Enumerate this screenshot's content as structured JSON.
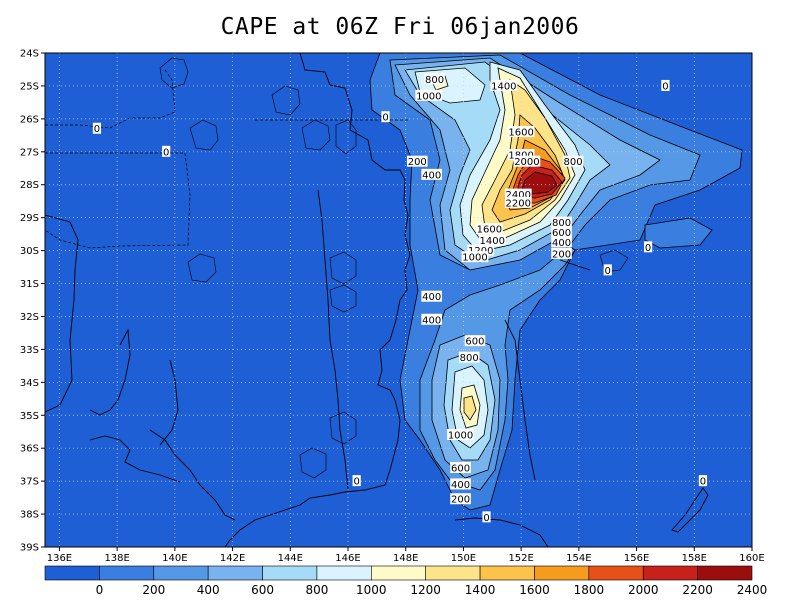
{
  "title": "CAPE at 06Z Fri 06jan2006",
  "map": {
    "lon_range": [
      135.5,
      160
    ],
    "lat_range": [
      -39,
      -24
    ],
    "lon_ticks": [
      "136E",
      "138E",
      "140E",
      "142E",
      "144E",
      "146E",
      "148E",
      "150E",
      "152E",
      "154E",
      "156E",
      "158E",
      "160E"
    ],
    "lat_ticks": [
      "24S",
      "25S",
      "26S",
      "27S",
      "28S",
      "29S",
      "30S",
      "31S",
      "32S",
      "33S",
      "34S",
      "35S",
      "36S",
      "37S",
      "38S",
      "39S"
    ],
    "grid": "dotted",
    "coastline_color": "#000000"
  },
  "colorbar": {
    "labels": [
      "0",
      "200",
      "400",
      "600",
      "800",
      "1000",
      "1200",
      "1400",
      "1600",
      "1800",
      "2000",
      "2200",
      "2400"
    ],
    "colors": [
      "#1f5fd6",
      "#3a7ee0",
      "#5598e6",
      "#78b2ef",
      "#a6dbf7",
      "#d9f4ff",
      "#fffbc8",
      "#fde38a",
      "#fbc24c",
      "#f59b1e",
      "#e8501a",
      "#c8201a",
      "#9c0e0e"
    ]
  },
  "contour_labels": [
    {
      "text": "800",
      "lon": 149.0,
      "lat": -24.8
    },
    {
      "text": "1000",
      "lon": 148.8,
      "lat": -25.3
    },
    {
      "text": "1400",
      "lon": 151.4,
      "lat": -25.0
    },
    {
      "text": "1600",
      "lon": 152.0,
      "lat": -26.4
    },
    {
      "text": "1800",
      "lon": 152.0,
      "lat": -27.1
    },
    {
      "text": "2000",
      "lon": 152.2,
      "lat": -27.3
    },
    {
      "text": "2400",
      "lon": 151.9,
      "lat": -28.3
    },
    {
      "text": "2200",
      "lon": 151.9,
      "lat": -28.55
    },
    {
      "text": "200",
      "lon": 148.4,
      "lat": -27.3
    },
    {
      "text": "400",
      "lon": 148.9,
      "lat": -27.7
    },
    {
      "text": "800",
      "lon": 153.8,
      "lat": -27.3
    },
    {
      "text": "800",
      "lon": 153.4,
      "lat": -29.15
    },
    {
      "text": "600",
      "lon": 153.4,
      "lat": -29.45
    },
    {
      "text": "400",
      "lon": 153.4,
      "lat": -29.75
    },
    {
      "text": "200",
      "lon": 153.4,
      "lat": -30.1
    },
    {
      "text": "1600",
      "lon": 150.9,
      "lat": -29.35
    },
    {
      "text": "1400",
      "lon": 151.0,
      "lat": -29.7
    },
    {
      "text": "1200",
      "lon": 150.6,
      "lat": -30.0
    },
    {
      "text": "1000",
      "lon": 150.4,
      "lat": -30.2
    },
    {
      "text": "400",
      "lon": 148.9,
      "lat": -31.4
    },
    {
      "text": "400",
      "lon": 148.9,
      "lat": -32.1
    },
    {
      "text": "600",
      "lon": 150.4,
      "lat": -32.75
    },
    {
      "text": "800",
      "lon": 150.2,
      "lat": -33.25
    },
    {
      "text": "1000",
      "lon": 149.9,
      "lat": -35.6
    },
    {
      "text": "600",
      "lon": 149.9,
      "lat": -36.6
    },
    {
      "text": "400",
      "lon": 149.9,
      "lat": -37.1
    },
    {
      "text": "200",
      "lon": 149.9,
      "lat": -37.55
    },
    {
      "text": "0",
      "lon": 150.8,
      "lat": -38.1
    },
    {
      "text": "0",
      "lon": 146.3,
      "lat": -37.0
    },
    {
      "text": "0",
      "lon": 137.3,
      "lat": -26.3
    },
    {
      "text": "0",
      "lon": 139.7,
      "lat": -27.0
    },
    {
      "text": "0",
      "lon": 147.3,
      "lat": -25.95
    },
    {
      "text": "0",
      "lon": 157.0,
      "lat": -25.0
    },
    {
      "text": "0",
      "lon": 156.4,
      "lat": -29.9
    },
    {
      "text": "0",
      "lon": 155.0,
      "lat": -30.6
    },
    {
      "text": "0",
      "lon": 158.3,
      "lat": -37.0
    }
  ]
}
